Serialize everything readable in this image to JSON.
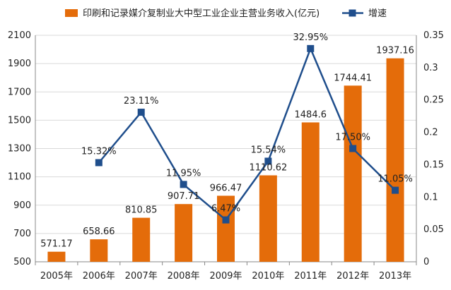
{
  "chart_data": {
    "type": "bar",
    "categories": [
      "2005年",
      "2006年",
      "2007年",
      "2008年",
      "2009年",
      "2010年",
      "2011年",
      "2012年",
      "2013年"
    ],
    "series": [
      {
        "name": "印刷和记录媒介复制业大中型工业企业主营业务收入(亿元)",
        "type": "bar",
        "axis": "left",
        "color": "#E46C0A",
        "values": [
          571.17,
          658.66,
          810.85,
          907.71,
          966.47,
          1110.62,
          1484.6,
          1744.41,
          1937.16
        ],
        "labels": [
          "571.17",
          "658.66",
          "810.85",
          "907.71",
          "966.47",
          "1110.62",
          "1484.6",
          "1744.41",
          "1937.16"
        ]
      },
      {
        "name": "增速",
        "type": "line",
        "axis": "right",
        "color": "#1F4E8C",
        "values": [
          null,
          0.1532,
          0.2311,
          0.1195,
          0.0647,
          0.1554,
          0.3295,
          0.175,
          0.1105
        ],
        "labels": [
          "",
          "15.32%",
          "23.11%",
          "11.95%",
          "6.47%",
          "15.54%",
          "32.95%",
          "17.50%",
          "11.05%"
        ]
      }
    ],
    "y_left": {
      "ylim": [
        500,
        2100
      ],
      "ticks": [
        "500",
        "700",
        "900",
        "1100",
        "1300",
        "1500",
        "1700",
        "1900",
        "2100"
      ]
    },
    "y_right": {
      "ylim": [
        0,
        0.35
      ],
      "ticks": [
        "0",
        "0.05",
        "0.1",
        "0.15",
        "0.2",
        "0.25",
        "0.3",
        "0.35"
      ]
    },
    "grid": true,
    "legend": "top"
  }
}
